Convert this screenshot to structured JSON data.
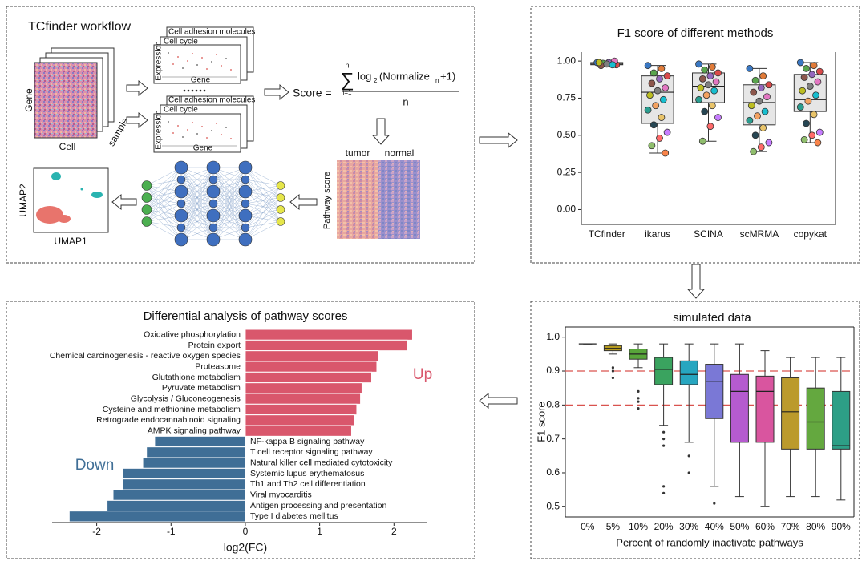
{
  "workflow": {
    "title": "TCfinder workflow",
    "matrix": {
      "gene": "Gene",
      "cell": "Cell",
      "sample": "sample"
    },
    "plots": [
      {
        "y_label": "Expression",
        "x_label": "Gene",
        "back": "Cell adhesion molecules",
        "front": "Cell cycle"
      },
      {
        "y_label": "Expression",
        "x_label": "Gene",
        "back": "Cell adhesion molecules",
        "front": "Cell cycle"
      }
    ],
    "formula": {
      "lhs": "Score =",
      "sum": "∑",
      "sum_top": "n",
      "sum_bottom": "i=1",
      "log": "log",
      "log_sub": "2",
      "arg": "(Normalize",
      "arg_sub": "n",
      "arg_end": "+1)",
      "denominator": "n"
    },
    "heatmap": {
      "tumor": "tumor",
      "normal": "normal",
      "y_label": "Pathway score"
    },
    "umap": {
      "x_label": "UMAP1",
      "y_label": "UMAP2"
    }
  },
  "chart_data": [
    {
      "type": "box",
      "title": "F1 score of different methods",
      "categories": [
        "TCfinder",
        "ikarus",
        "SCINA",
        "scMRMA",
        "copykat"
      ],
      "ylim": [
        -0.1,
        1.06
      ],
      "yticks": [
        {
          "value": 0,
          "label": "0.00"
        },
        {
          "value": 0.25,
          "label": "0.25"
        },
        {
          "value": 0.5,
          "label": "0.50"
        },
        {
          "value": 0.75,
          "label": "0.75"
        },
        {
          "value": 1,
          "label": "1.00"
        }
      ],
      "box_colors": [
        "#e6e6e6",
        "#e6e6e6",
        "#e6e6e6",
        "#e6e6e6",
        "#e6e6e6"
      ],
      "point_colors": [
        "#3a78c3",
        "#e07b39",
        "#5aa54e",
        "#d94a4a",
        "#9467bd",
        "#8c564b",
        "#e377c2",
        "#7f7f7f",
        "#bcbd22",
        "#17becf",
        "#f4a261",
        "#2a9d8f",
        "#e9c46a",
        "#264653",
        "#c77dff",
        "#ff6b6b",
        "#90be6d",
        "#f9844a"
      ],
      "boxes": [
        {
          "min": 0.96,
          "q1": 0.975,
          "median": 0.98,
          "q3": 0.99,
          "max": 1.0,
          "points": [
            0.99,
            0.98,
            0.985,
            0.975,
            0.99,
            0.97,
            1.0,
            0.98,
            0.99,
            0.975
          ]
        },
        {
          "min": 0.38,
          "q1": 0.58,
          "median": 0.79,
          "q3": 0.9,
          "max": 0.97,
          "points": [
            0.97,
            0.95,
            0.92,
            0.9,
            0.88,
            0.85,
            0.82,
            0.8,
            0.77,
            0.74,
            0.7,
            0.67,
            0.62,
            0.57,
            0.52,
            0.48,
            0.43,
            0.38
          ]
        },
        {
          "min": 0.46,
          "q1": 0.72,
          "median": 0.83,
          "q3": 0.92,
          "max": 0.98,
          "points": [
            0.98,
            0.96,
            0.94,
            0.92,
            0.9,
            0.88,
            0.86,
            0.84,
            0.82,
            0.8,
            0.77,
            0.74,
            0.7,
            0.66,
            0.62,
            0.56,
            0.46
          ]
        },
        {
          "min": 0.39,
          "q1": 0.57,
          "median": 0.72,
          "q3": 0.84,
          "max": 0.95,
          "points": [
            0.95,
            0.9,
            0.87,
            0.84,
            0.82,
            0.79,
            0.76,
            0.73,
            0.7,
            0.66,
            0.63,
            0.6,
            0.55,
            0.5,
            0.45,
            0.42,
            0.39
          ]
        },
        {
          "min": 0.45,
          "q1": 0.66,
          "median": 0.74,
          "q3": 0.91,
          "max": 0.99,
          "points": [
            0.99,
            0.97,
            0.95,
            0.93,
            0.91,
            0.89,
            0.86,
            0.83,
            0.8,
            0.77,
            0.73,
            0.69,
            0.64,
            0.58,
            0.52,
            0.5,
            0.47,
            0.45
          ]
        }
      ]
    },
    {
      "type": "barh",
      "title": "Differential analysis of pathway scores",
      "x_label": "log2(FC)",
      "categories": [
        "Oxidative phosphorylation",
        "Protein export",
        "Chemical carcinogenesis - reactive oxygen species",
        "Proteasome",
        "Glutathione metabolism",
        "Pyruvate metabolism",
        "Glycolysis / Gluconeogenesis",
        "Cysteine and methionine metabolism",
        "Retrograde endocannabinoid signaling",
        "AMPK signaling pathway",
        "NF-kappa B signaling pathway",
        "T cell receptor signaling pathway",
        "Natural killer cell mediated cytotoxicity",
        "Systemic lupus erythematosus",
        "Th1 and Th2 cell differentiation",
        "Viral myocarditis",
        "Antigen processing and presentation",
        "Type I diabetes mellitus"
      ],
      "values": [
        2.25,
        2.18,
        1.79,
        1.77,
        1.7,
        1.57,
        1.55,
        1.5,
        1.47,
        1.43,
        -1.22,
        -1.33,
        -1.38,
        -1.65,
        -1.65,
        -1.78,
        -1.86,
        -2.37
      ],
      "color_positive": "#d9576c",
      "color_negative": "#3f6e96",
      "xlim": [
        -2.6,
        2.45
      ],
      "xticks": [
        -2,
        -1,
        0,
        1,
        2
      ],
      "annotations": [
        {
          "text": "Up",
          "color": "#d9576c"
        },
        {
          "text": "Down",
          "color": "#3f6e96"
        }
      ]
    },
    {
      "type": "box",
      "title": "simulated data",
      "x_label": "Percent of randomly inactivate pathways",
      "y_label": "F1 score",
      "categories": [
        "0%",
        "5%",
        "10%",
        "20%",
        "30%",
        "40%",
        "50%",
        "60%",
        "70%",
        "80%",
        "90%"
      ],
      "ylim": [
        0.47,
        1.03
      ],
      "yticks": [
        0.5,
        0.6,
        0.7,
        0.8,
        0.9,
        {
          "value": 1,
          "label": "1.0"
        }
      ],
      "hlines": [
        0.9,
        0.8
      ],
      "hline_color": "#d9534f",
      "box_colors": [
        "#ffffff",
        "#b59a1e",
        "#58a53a",
        "#3aa35f",
        "#27a6c0",
        "#7a78d6",
        "#b55bcf",
        "#d9559f",
        "#bb9a2c",
        "#64a83f",
        "#2d9f86"
      ],
      "boxes": [
        {
          "min": 0.98,
          "q1": 0.98,
          "median": 0.98,
          "q3": 0.98,
          "max": 0.98
        },
        {
          "min": 0.95,
          "q1": 0.96,
          "median": 0.967,
          "q3": 0.975,
          "max": 0.98,
          "outliers": [
            0.91,
            0.9,
            0.88
          ]
        },
        {
          "min": 0.91,
          "q1": 0.935,
          "median": 0.95,
          "q3": 0.965,
          "max": 0.98,
          "outliers": [
            0.84,
            0.82,
            0.81,
            0.79
          ]
        },
        {
          "min": 0.74,
          "q1": 0.86,
          "median": 0.905,
          "q3": 0.94,
          "max": 0.98,
          "outliers": [
            0.72,
            0.7,
            0.68,
            0.56,
            0.54
          ]
        },
        {
          "min": 0.69,
          "q1": 0.86,
          "median": 0.89,
          "q3": 0.93,
          "max": 0.98,
          "outliers": [
            0.65,
            0.6
          ]
        },
        {
          "min": 0.56,
          "q1": 0.76,
          "median": 0.87,
          "q3": 0.92,
          "max": 0.98,
          "outliers": [
            0.51
          ]
        },
        {
          "min": 0.53,
          "q1": 0.69,
          "median": 0.84,
          "q3": 0.89,
          "max": 0.98
        },
        {
          "min": 0.5,
          "q1": 0.69,
          "median": 0.84,
          "q3": 0.885,
          "max": 0.96
        },
        {
          "min": 0.53,
          "q1": 0.67,
          "median": 0.78,
          "q3": 0.88,
          "max": 0.94
        },
        {
          "min": 0.53,
          "q1": 0.67,
          "median": 0.75,
          "q3": 0.85,
          "max": 0.94
        },
        {
          "min": 0.52,
          "q1": 0.67,
          "median": 0.68,
          "q3": 0.84,
          "max": 0.94
        }
      ]
    }
  ]
}
